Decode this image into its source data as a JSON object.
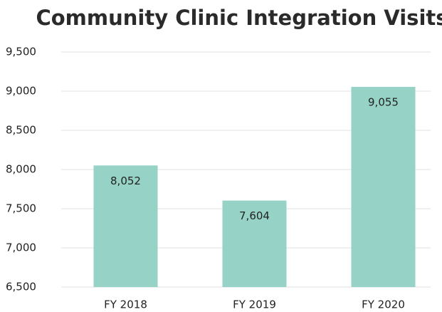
{
  "chart_data": {
    "type": "bar",
    "title": "Community Clinic Integration Visits",
    "categories": [
      "FY 2018",
      "FY 2019",
      "FY 2020"
    ],
    "values": [
      8052,
      7604,
      9055
    ],
    "value_labels": [
      "8,052",
      "7,604",
      "9,055"
    ],
    "color": "#96d3c6",
    "ylim": [
      6500,
      9500
    ],
    "yticks": [
      {
        "value": 6500,
        "label": "6,500"
      },
      {
        "value": 7000,
        "label": "7,000"
      },
      {
        "value": 7500,
        "label": "7,500"
      },
      {
        "value": 8000,
        "label": "8,000"
      },
      {
        "value": 8500,
        "label": "8,500"
      },
      {
        "value": 9000,
        "label": "9,000"
      },
      {
        "value": 9500,
        "label": "9,500"
      }
    ],
    "grid": true
  }
}
